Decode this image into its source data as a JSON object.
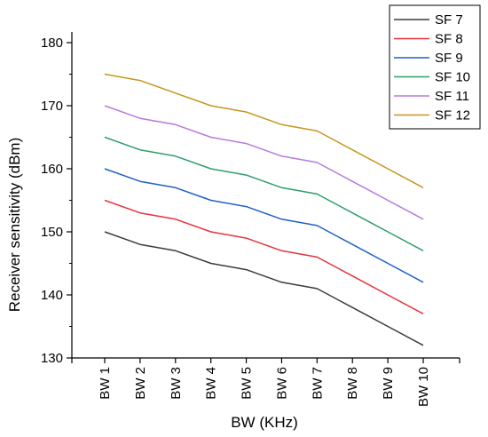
{
  "chart_data": {
    "type": "line",
    "xlabel": "BW (KHz)",
    "ylabel": "Receiver sensitivity (dBm)",
    "categories": [
      "BW 1",
      "BW 2",
      "BW 3",
      "BW 4",
      "BW 5",
      "BW 6",
      "BW 7",
      "BW 8",
      "BW 9",
      "BW 10"
    ],
    "ylim": [
      130,
      180
    ],
    "yticks": [
      130,
      140,
      150,
      160,
      170,
      180
    ],
    "grid": false,
    "legend_position": "top-right",
    "series": [
      {
        "name": "SF 7",
        "color": "#3b3b3b",
        "values": [
          150,
          148,
          147,
          145,
          144,
          142,
          141,
          138,
          135,
          132
        ]
      },
      {
        "name": "SF 8",
        "color": "#e8323a",
        "values": [
          155,
          153,
          152,
          150,
          149,
          147,
          146,
          143,
          140,
          137
        ]
      },
      {
        "name": "SF 9",
        "color": "#1f5fc8",
        "values": [
          160,
          158,
          157,
          155,
          154,
          152,
          151,
          148,
          145,
          142
        ]
      },
      {
        "name": "SF 10",
        "color": "#2e9e6a",
        "values": [
          165,
          163,
          162,
          160,
          159,
          157,
          156,
          153,
          150,
          147
        ]
      },
      {
        "name": "SF 11",
        "color": "#b57bdc",
        "values": [
          170,
          168,
          167,
          165,
          164,
          162,
          161,
          158,
          155,
          152
        ]
      },
      {
        "name": "SF 12",
        "color": "#c8941c",
        "values": [
          175,
          174,
          172,
          170,
          169,
          167,
          166,
          163,
          160,
          157
        ]
      }
    ]
  }
}
